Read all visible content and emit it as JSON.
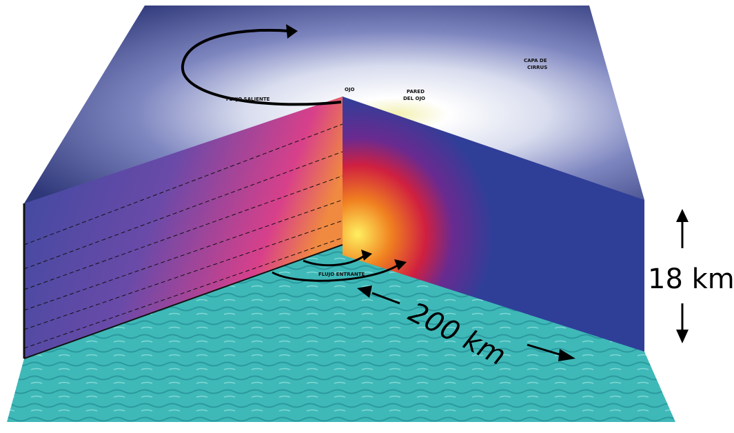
{
  "labels": {
    "flujo_saliente": "FLUJO SALIENTE",
    "ojo": "OJO",
    "pared_del_ojo": [
      "PARED",
      "DEL OJO"
    ],
    "capa_de_cirrus": [
      "CAPA DE",
      "CIRRUS"
    ],
    "flujo_entrante": "FLUJO ENTRANTE",
    "horizontal_scale": "200 km",
    "vertical_scale": "18 km"
  }
}
